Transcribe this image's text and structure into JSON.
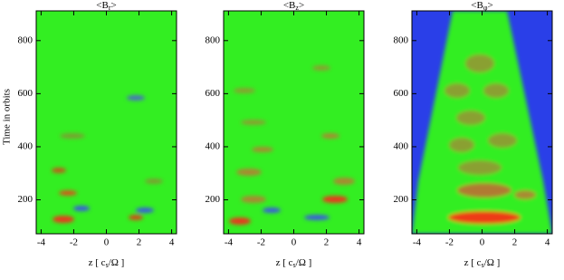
{
  "chart_data": [
    {
      "type": "heatmap",
      "title": [
        "<B",
        "r",
        ">"
      ],
      "xlabel": [
        "z [ c",
        "s",
        "/Ω ]"
      ],
      "ylabel": "Time in orbits",
      "xlim": [
        -4.3,
        4.3
      ],
      "xticks": [
        -4,
        -2,
        0,
        2,
        4
      ],
      "ylim": [
        72,
        912
      ],
      "yticks": [
        200,
        400,
        600,
        800
      ]
    },
    {
      "type": "heatmap",
      "title": [
        "<B",
        "z",
        ">"
      ],
      "xlabel": [
        "z [ c",
        "s",
        "/Ω ]"
      ],
      "xlim": [
        -4.3,
        4.3
      ],
      "xticks": [
        -4,
        -2,
        0,
        2,
        4
      ],
      "ylim": [
        72,
        912
      ],
      "yticks": [
        200,
        400,
        600,
        800
      ]
    },
    {
      "type": "heatmap",
      "title": [
        "<B",
        "φ",
        ">"
      ],
      "xlabel": [
        "z [ c",
        "s",
        "/Ω ]"
      ],
      "xlim": [
        -4.3,
        4.3
      ],
      "xticks": [
        -4,
        -2,
        0,
        2,
        4
      ],
      "ylim": [
        72,
        912
      ],
      "yticks": [
        200,
        400,
        600,
        800
      ]
    }
  ]
}
